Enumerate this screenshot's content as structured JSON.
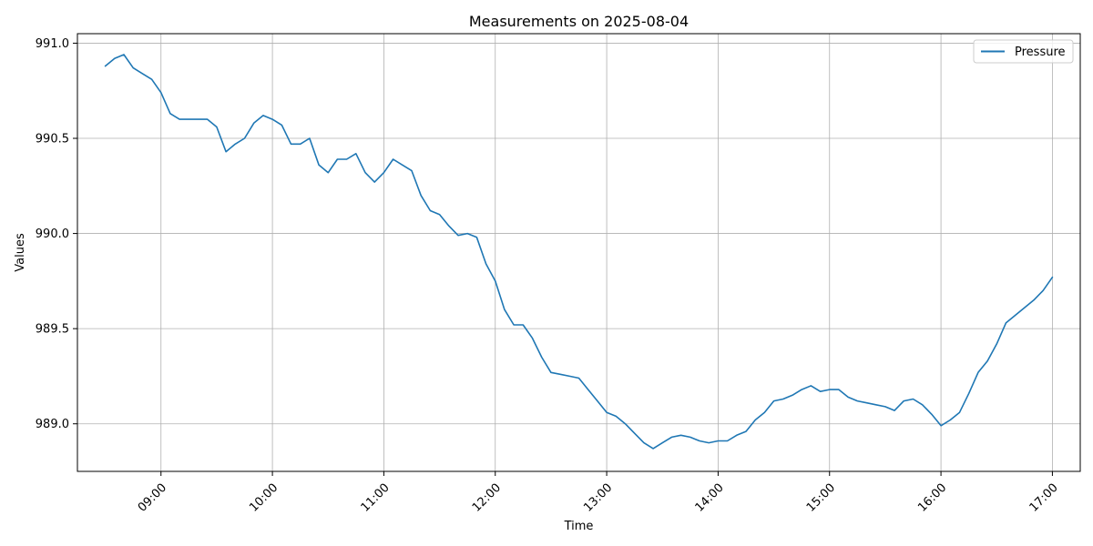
{
  "chart_data": {
    "type": "line",
    "title": "Measurements on 2025-08-04",
    "xlabel": "Time",
    "ylabel": "Values",
    "xlim": [
      "08:15",
      "17:15"
    ],
    "ylim": [
      988.75,
      991.05
    ],
    "grid": true,
    "legend": "top-right",
    "x_ticks": [
      "09:00",
      "10:00",
      "11:00",
      "12:00",
      "13:00",
      "14:00",
      "15:00",
      "16:00",
      "17:00"
    ],
    "y_ticks": [
      "989.0",
      "989.5",
      "990.0",
      "990.5",
      "991.0"
    ],
    "series": [
      {
        "name": "Pressure",
        "color": "#1f77b4",
        "x": [
          "08:30",
          "08:35",
          "08:40",
          "08:45",
          "08:50",
          "08:55",
          "09:00",
          "09:05",
          "09:10",
          "09:15",
          "09:20",
          "09:25",
          "09:30",
          "09:35",
          "09:40",
          "09:45",
          "09:50",
          "09:55",
          "10:00",
          "10:05",
          "10:10",
          "10:15",
          "10:20",
          "10:25",
          "10:30",
          "10:35",
          "10:40",
          "10:45",
          "10:50",
          "10:55",
          "11:00",
          "11:05",
          "11:10",
          "11:15",
          "11:20",
          "11:25",
          "11:30",
          "11:35",
          "11:40",
          "11:45",
          "11:50",
          "11:55",
          "12:00",
          "12:05",
          "12:10",
          "12:15",
          "12:20",
          "12:25",
          "12:30",
          "12:35",
          "12:40",
          "12:45",
          "12:50",
          "12:55",
          "13:00",
          "13:05",
          "13:10",
          "13:15",
          "13:20",
          "13:25",
          "13:30",
          "13:35",
          "13:40",
          "13:45",
          "13:50",
          "13:55",
          "14:00",
          "14:05",
          "14:10",
          "14:15",
          "14:20",
          "14:25",
          "14:30",
          "14:35",
          "14:40",
          "14:45",
          "14:50",
          "14:55",
          "15:00",
          "15:05",
          "15:10",
          "15:15",
          "15:20",
          "15:25",
          "15:30",
          "15:35",
          "15:40",
          "15:45",
          "15:50",
          "15:55",
          "16:00",
          "16:05",
          "16:10",
          "16:15",
          "16:20",
          "16:25",
          "16:30",
          "16:35",
          "16:40",
          "16:45",
          "16:50",
          "16:55",
          "17:00"
        ],
        "y": [
          990.88,
          990.92,
          990.94,
          990.87,
          990.84,
          990.81,
          990.74,
          990.63,
          990.6,
          990.6,
          990.6,
          990.6,
          990.56,
          990.43,
          990.47,
          990.5,
          990.58,
          990.62,
          990.6,
          990.57,
          990.47,
          990.47,
          990.5,
          990.36,
          990.32,
          990.39,
          990.39,
          990.42,
          990.32,
          990.27,
          990.32,
          990.39,
          990.36,
          990.33,
          990.2,
          990.12,
          990.1,
          990.04,
          989.99,
          990.0,
          989.98,
          989.84,
          989.75,
          989.6,
          989.52,
          989.52,
          989.45,
          989.35,
          989.27,
          989.26,
          989.25,
          989.24,
          989.18,
          989.12,
          989.06,
          989.04,
          989.0,
          988.95,
          988.9,
          988.87,
          988.9,
          988.93,
          988.94,
          988.93,
          988.91,
          988.9,
          988.91,
          988.91,
          988.94,
          988.96,
          989.02,
          989.06,
          989.12,
          989.13,
          989.15,
          989.18,
          989.2,
          989.17,
          989.18,
          989.18,
          989.14,
          989.12,
          989.11,
          989.1,
          989.09,
          989.07,
          989.12,
          989.13,
          989.1,
          989.05,
          988.99,
          989.02,
          989.06,
          989.16,
          989.27,
          989.33,
          989.42,
          989.53,
          989.57,
          989.61,
          989.65,
          989.7,
          989.77
        ]
      }
    ]
  }
}
